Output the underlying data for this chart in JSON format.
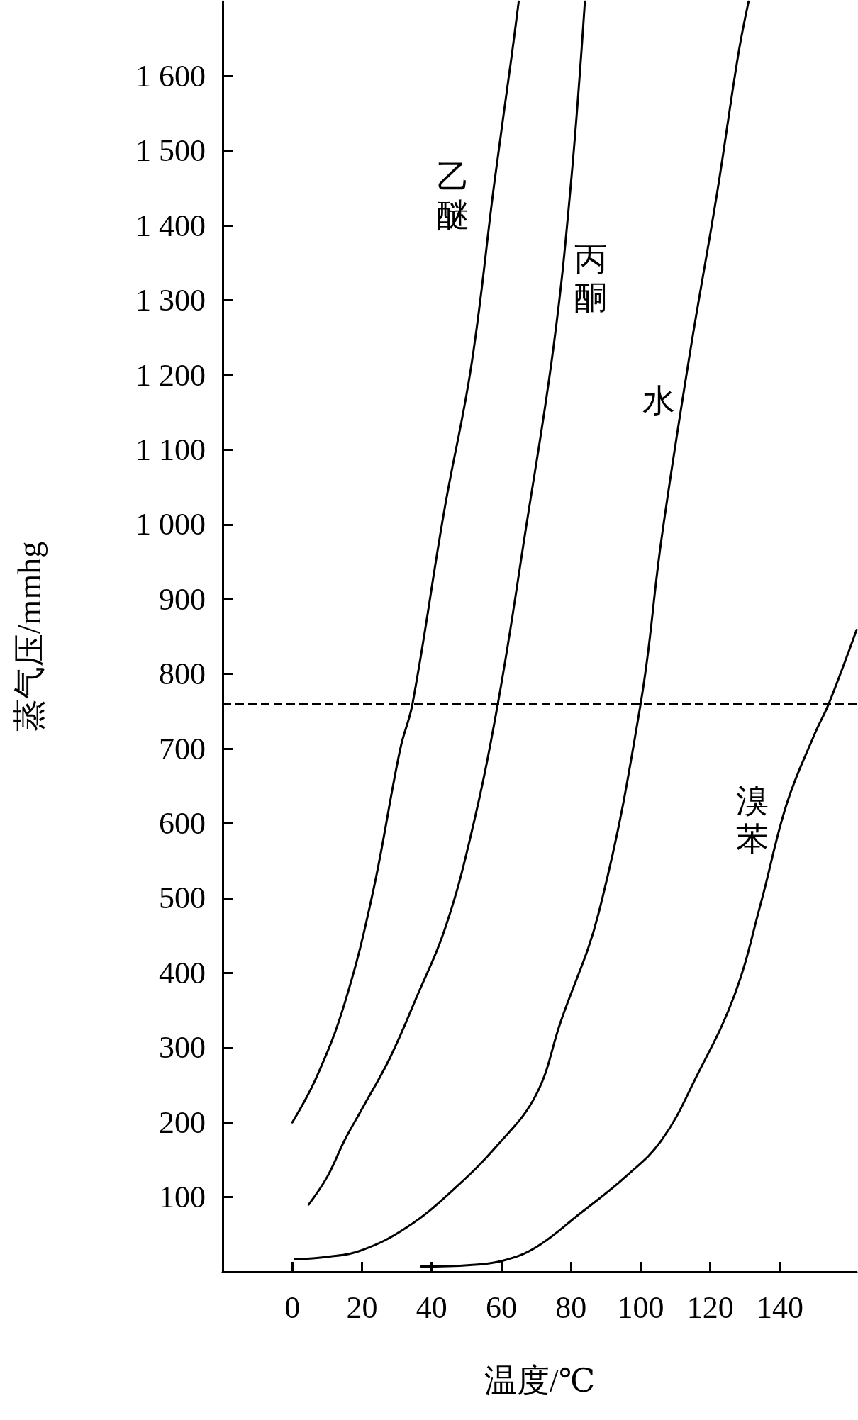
{
  "chart_data": {
    "type": "line",
    "xlabel": "温度/℃",
    "ylabel": "蒸气压/mmhg",
    "xlim": [
      -20,
      162
    ],
    "xticks": [
      0,
      20,
      40,
      60,
      80,
      100,
      120,
      140
    ],
    "ylim": [
      0,
      1700
    ],
    "yticks": [
      100,
      200,
      300,
      400,
      500,
      600,
      700,
      800,
      900,
      {
        "value": 1000,
        "label": "1 000"
      },
      {
        "value": 1100,
        "label": "1 100"
      },
      {
        "value": 1200,
        "label": "1 200"
      },
      {
        "value": 1300,
        "label": "1 300"
      },
      {
        "value": 1400,
        "label": "1 400"
      },
      {
        "value": 1500,
        "label": "1 500"
      },
      {
        "value": 1600,
        "label": "1 600"
      }
    ],
    "grid": false,
    "legend": false,
    "marker": "none",
    "line_style": "solid",
    "series": [
      {
        "name": "乙醚",
        "color": "#000000",
        "x": [
          0,
          7,
          15,
          23,
          31,
          34.5,
          43.6,
          51.4,
          58,
          63,
          65
        ],
        "values": [
          200,
          261,
          359,
          505,
          700,
          760,
          1018,
          1213,
          1457,
          1628,
          1700
        ]
      },
      {
        "name": "丙酮",
        "color": "#000000",
        "x": [
          4.7,
          10,
          15,
          20,
          28,
          36,
          43.6,
          51,
          59,
          67,
          75,
          80,
          84
        ],
        "values": [
          90,
          127,
          176,
          218,
          286,
          371,
          456,
          579,
          760,
          993,
          1238,
          1457,
          1700
        ]
      },
      {
        "name": "水",
        "color": "#000000",
        "x": [
          0.8,
          10,
          20,
          33,
          46,
          59,
          70,
          77,
          88,
          100,
          106,
          114,
          122,
          128,
          131
        ],
        "values": [
          17,
          20,
          29,
          60,
          109,
          170,
          237,
          334,
          481,
          760,
          981,
          1225,
          1445,
          1628,
          1700
        ]
      },
      {
        "name": "溴苯",
        "color": "#000000",
        "x": [
          37,
          51,
          60.5,
          70,
          82.6,
          95.6,
          106,
          116,
          127,
          134.5,
          142,
          150,
          154,
          162
        ],
        "values": [
          7,
          9,
          15,
          33,
          78,
          127,
          176,
          261,
          371,
          493,
          627,
          720,
          760,
          859
        ]
      }
    ],
    "ref_lines": [
      {
        "axis": "y",
        "value": 760,
        "line_style": "dashed",
        "color": "#000000"
      }
    ]
  }
}
